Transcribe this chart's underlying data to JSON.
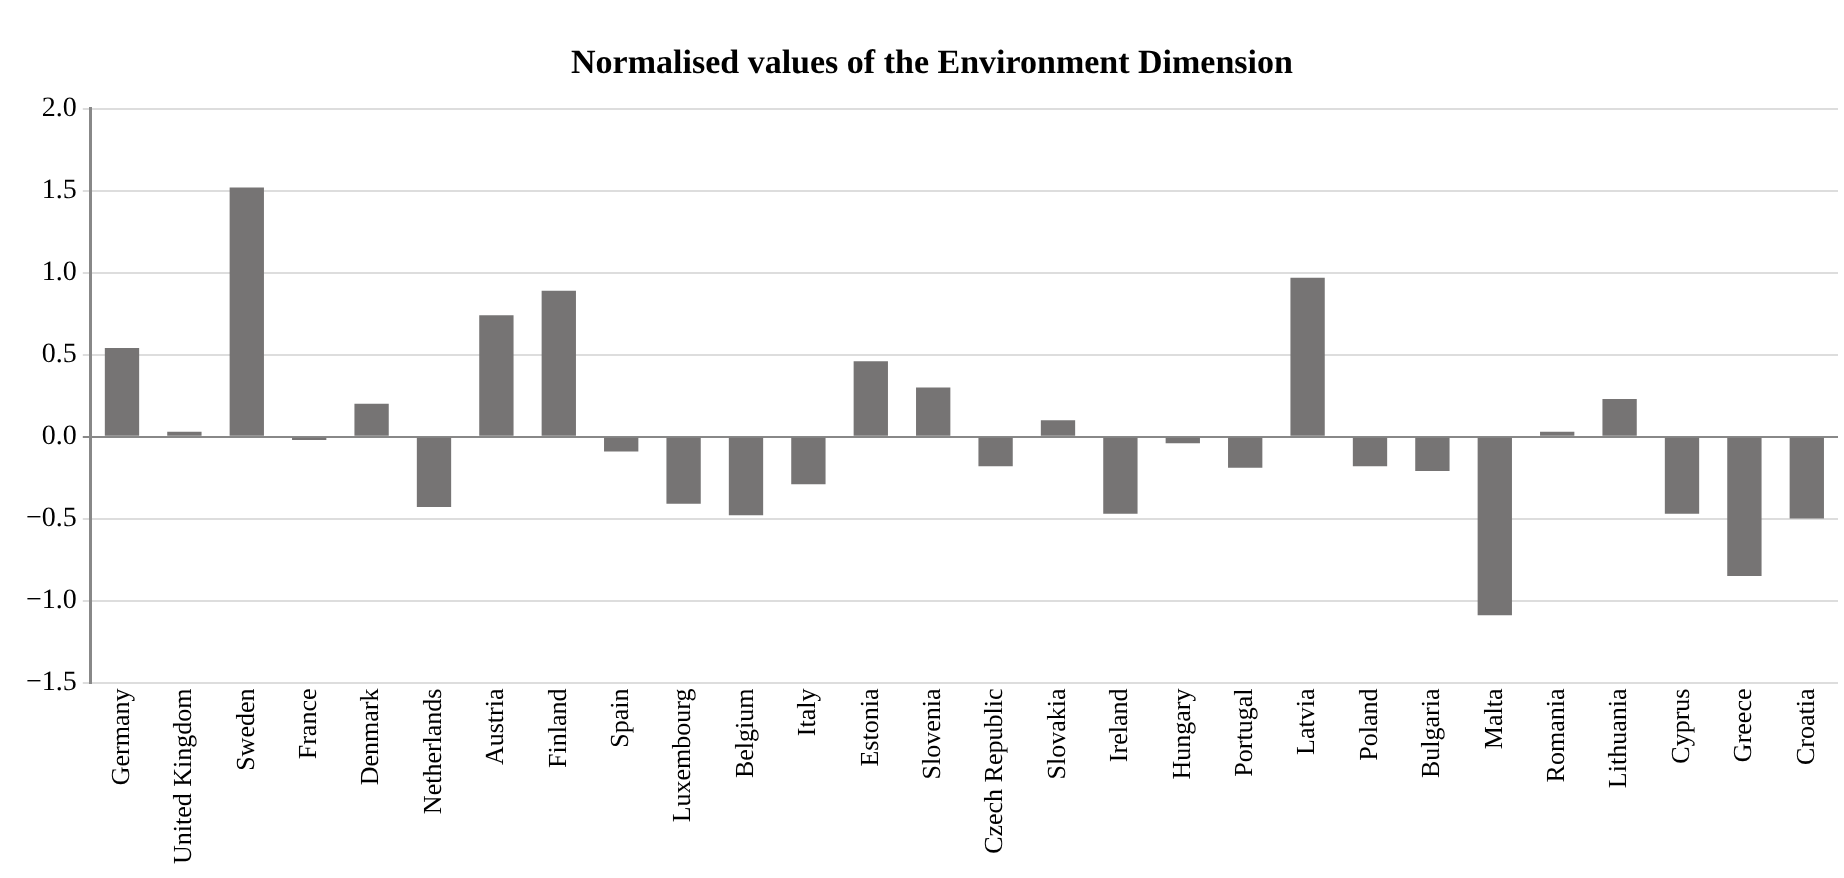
{
  "chart_data": {
    "type": "bar",
    "title": "Normalised values of the Environment Dimension",
    "categories": [
      "Germany",
      "United Kingdom",
      "Sweden",
      "France",
      "Denmark",
      "Netherlands",
      "Austria",
      "Finland",
      "Spain",
      "Luxembourg",
      "Belgium",
      "Italy",
      "Estonia",
      "Slovenia",
      "Czech Republic",
      "Slovakia",
      "Ireland",
      "Hungary",
      "Portugal",
      "Latvia",
      "Poland",
      "Bulgaria",
      "Malta",
      "Romania",
      "Lithuania",
      "Cyprus",
      "Greece",
      "Croatia"
    ],
    "values": [
      0.54,
      0.03,
      1.52,
      -0.02,
      0.2,
      -0.43,
      0.74,
      0.89,
      -0.09,
      -0.41,
      -0.48,
      -0.29,
      0.46,
      0.3,
      -0.18,
      0.1,
      -0.47,
      -0.04,
      -0.19,
      0.97,
      -0.18,
      -0.21,
      -1.09,
      0.03,
      0.23,
      -0.47,
      -0.85,
      -0.5
    ],
    "color": "#767474",
    "ylim": [
      -1.5,
      2.0
    ],
    "yticks": [
      {
        "value": -1.5,
        "label": "−1.5"
      },
      {
        "value": -1.0,
        "label": "−1.0"
      },
      {
        "value": -0.5,
        "label": "−0.5"
      },
      {
        "value": 0,
        "label": "0.0"
      },
      {
        "value": 0.5,
        "label": "0.5"
      },
      {
        "value": 1.0,
        "label": "1.0"
      },
      {
        "value": 1.5,
        "label": "1.5"
      },
      {
        "value": 2.0,
        "label": "2.0"
      }
    ],
    "grid": "y"
  }
}
